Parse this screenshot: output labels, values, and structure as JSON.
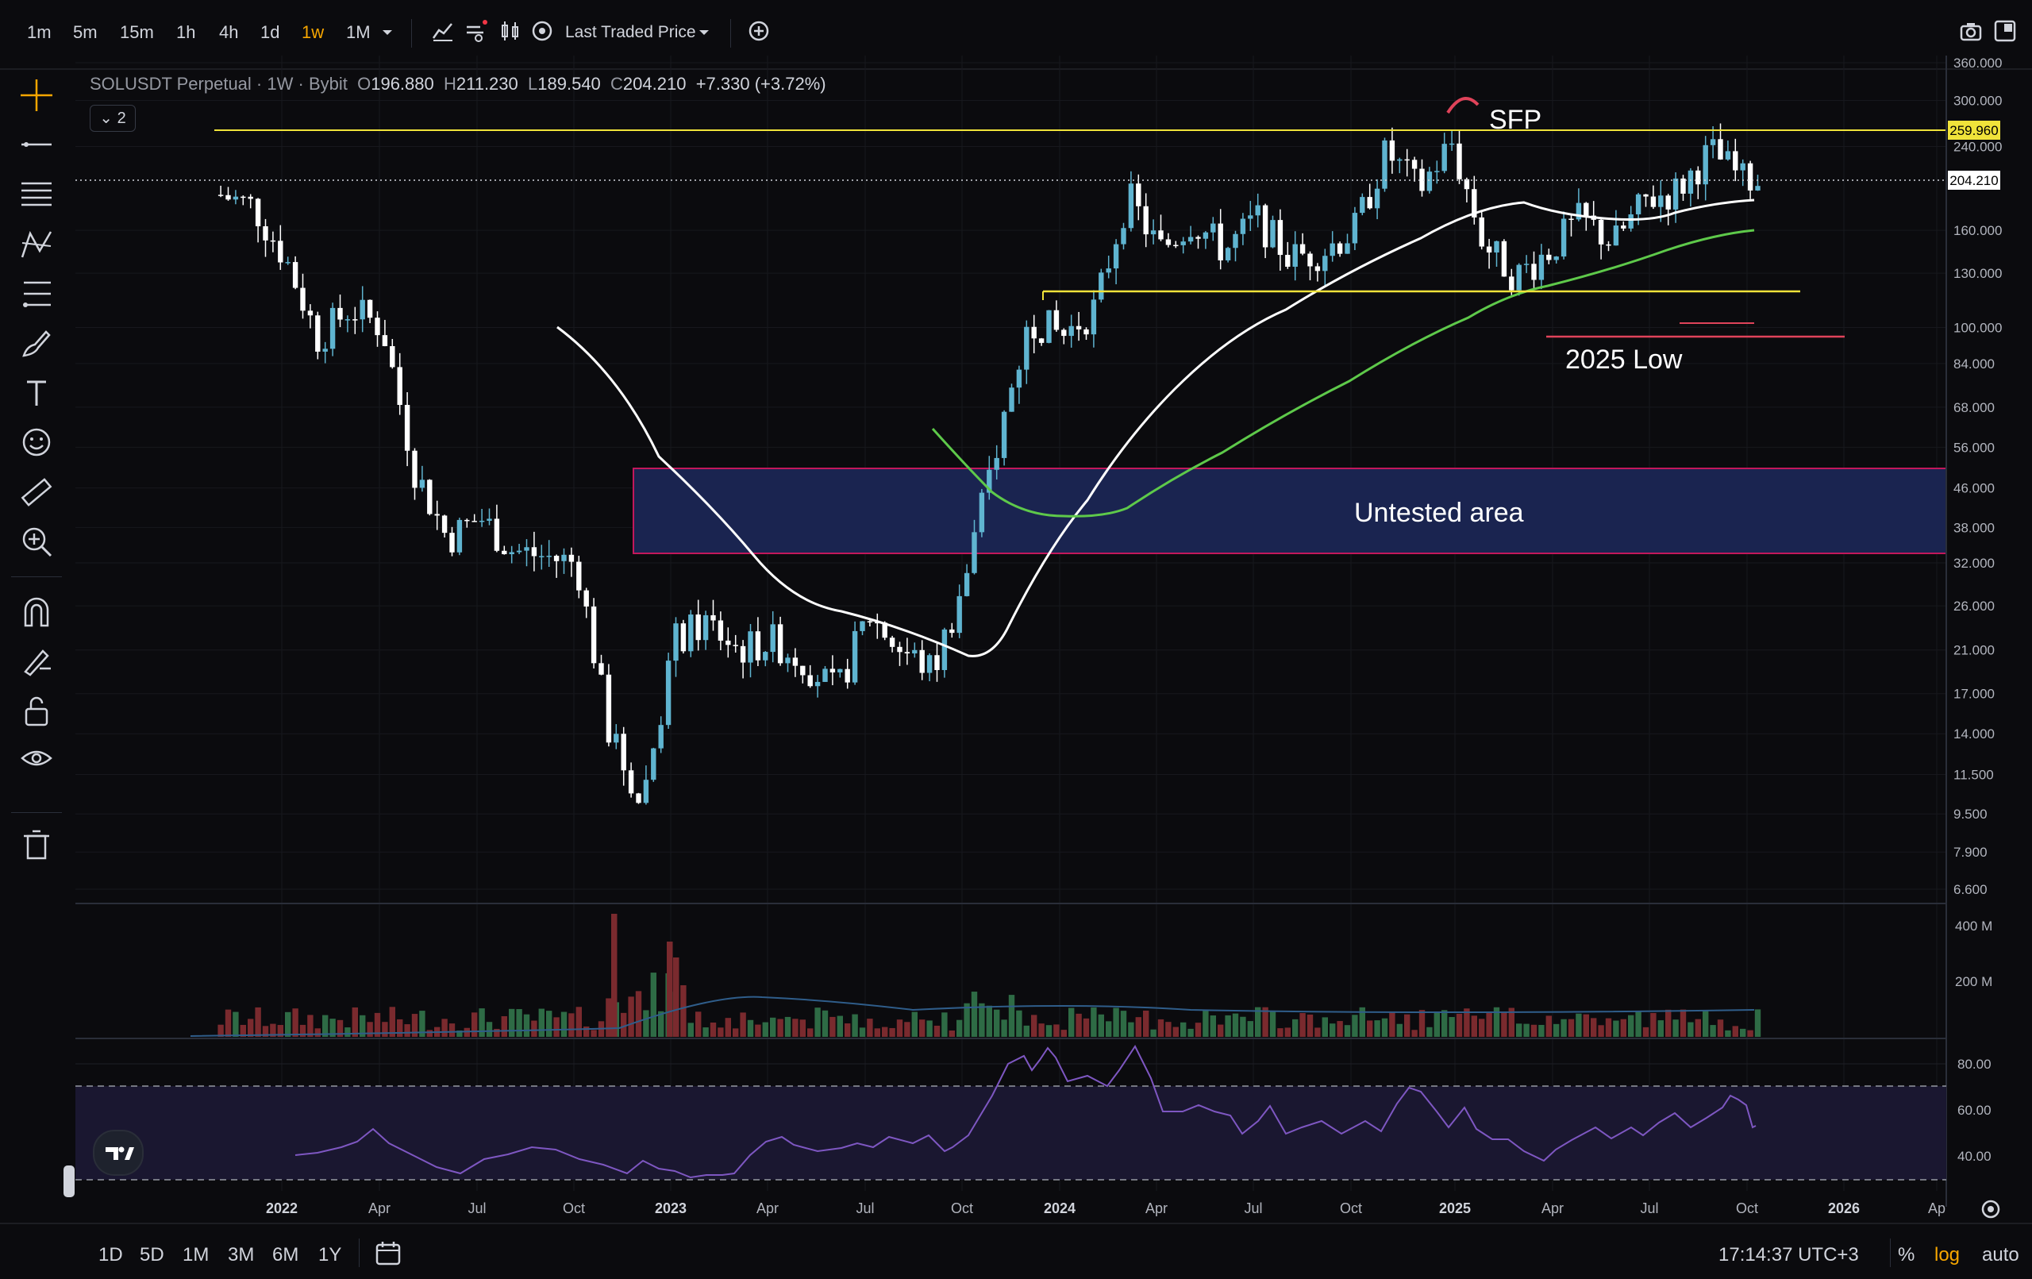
{
  "toolbar": {
    "timeframes": [
      "1m",
      "5m",
      "15m",
      "1h",
      "4h",
      "1d",
      "1w",
      "1M"
    ],
    "active_timeframe": "1w",
    "price_source": "Last Traded Price",
    "chevron_icon": "chevron-down-icon"
  },
  "legend": {
    "symbol": "SOLUSDT Perpetual",
    "interval": "1W",
    "exchange": "Bybit",
    "open_label": "O",
    "open": "196.880",
    "high_label": "H",
    "high": "211.230",
    "low_label": "L",
    "low": "189.540",
    "close_label": "C",
    "close": "204.210",
    "change": "+7.330 (+3.72%)",
    "collapsed_count": "2"
  },
  "price_axis": {
    "ticks": [
      "360.000",
      "300.000",
      "240.000",
      "160.000",
      "130.000",
      "100.000",
      "84.000",
      "68.000",
      "56.000",
      "46.000",
      "38.000",
      "32.000",
      "26.000",
      "21.000",
      "17.000",
      "14.000",
      "11.500",
      "9.500",
      "7.900",
      "6.600"
    ],
    "level_tag": "259.960",
    "last_price_tag": "204.210"
  },
  "volume_axis": {
    "ticks": [
      "400 M",
      "200 M"
    ]
  },
  "rsi_axis": {
    "ticks": [
      "80.00",
      "60.00",
      "40.00"
    ]
  },
  "time_axis": {
    "ticks": [
      "2022",
      "Apr",
      "Jul",
      "Oct",
      "2023",
      "Apr",
      "Jul",
      "Oct",
      "2024",
      "Apr",
      "Jul",
      "Oct",
      "2025",
      "Apr",
      "Jul",
      "Oct",
      "2026",
      "Ap"
    ]
  },
  "annotations": {
    "sfp": "SFP",
    "low_2025": "2025 Low",
    "untested": "Untested area"
  },
  "bottom": {
    "ranges": [
      "1D",
      "5D",
      "1M",
      "3M",
      "6M",
      "1Y"
    ],
    "clock": "17:14:37 UTC+3",
    "percent": "%",
    "log": "log",
    "auto": "auto"
  },
  "colors": {
    "up": "#5fb4d0",
    "down": "#ffffff",
    "vol_up": "#2e6b45",
    "vol_down": "#7a2a2e",
    "level_yellow": "#f0e33a",
    "ma_white": "#ffffff",
    "ma_green": "#5ec94a",
    "rsi": "#7e57c2",
    "box_fill": "#1a2450",
    "box_border": "#c2185b",
    "low_line": "#e0435a"
  },
  "chart_data": {
    "type": "candlestick",
    "title": "SOLUSDT Perpetual · 1W · Bybit",
    "scale": "log",
    "ylim": [
      6.6,
      360
    ],
    "x_ticks": [
      "2022",
      "Apr",
      "Jul",
      "Oct",
      "2023",
      "Apr",
      "Jul",
      "Oct",
      "2024",
      "Apr",
      "Jul",
      "Oct",
      "2025",
      "Apr",
      "Jul",
      "Oct",
      "2026"
    ],
    "series_close_path": [
      [
        "2021-11",
        190
      ],
      [
        "2021-12",
        180
      ],
      [
        "2022-01",
        140
      ],
      [
        "2022-02",
        95
      ],
      [
        "2022-03",
        110
      ],
      [
        "2022-04",
        100
      ],
      [
        "2022-05",
        50
      ],
      [
        "2022-06",
        36
      ],
      [
        "2022-07",
        40
      ],
      [
        "2022-08",
        34
      ],
      [
        "2022-09",
        33
      ],
      [
        "2022-10",
        32
      ],
      [
        "2022-11",
        14
      ],
      [
        "2022-12",
        10
      ],
      [
        "2023-01",
        22
      ],
      [
        "2023-02",
        24
      ],
      [
        "2023-03",
        21
      ],
      [
        "2023-04",
        22
      ],
      [
        "2023-05",
        20
      ],
      [
        "2023-06",
        17
      ],
      [
        "2023-07",
        25
      ],
      [
        "2023-08",
        21
      ],
      [
        "2023-09",
        19
      ],
      [
        "2023-10",
        30
      ],
      [
        "2023-11",
        58
      ],
      [
        "2023-12",
        105
      ],
      [
        "2024-01",
        96
      ],
      [
        "2024-02",
        110
      ],
      [
        "2024-03",
        190
      ],
      [
        "2024-04",
        145
      ],
      [
        "2024-05",
        168
      ],
      [
        "2024-06",
        145
      ],
      [
        "2024-07",
        170
      ],
      [
        "2024-08",
        140
      ],
      [
        "2024-09",
        145
      ],
      [
        "2024-10",
        160
      ],
      [
        "2024-11",
        235
      ],
      [
        "2024-12",
        195
      ],
      [
        "2025-01",
        245
      ],
      [
        "2025-02",
        150
      ],
      [
        "2025-03",
        128
      ],
      [
        "2025-04",
        145
      ],
      [
        "2025-05",
        170
      ],
      [
        "2025-06",
        150
      ],
      [
        "2025-07",
        185
      ],
      [
        "2025-08",
        195
      ],
      [
        "2025-09",
        235
      ],
      [
        "2025-10",
        204.21
      ]
    ],
    "levels": [
      {
        "label": "259.960",
        "value": 259.96
      },
      {
        "value": 118
      }
    ],
    "zone": {
      "label": "Untested area",
      "from": 33,
      "to": 51
    }
  }
}
